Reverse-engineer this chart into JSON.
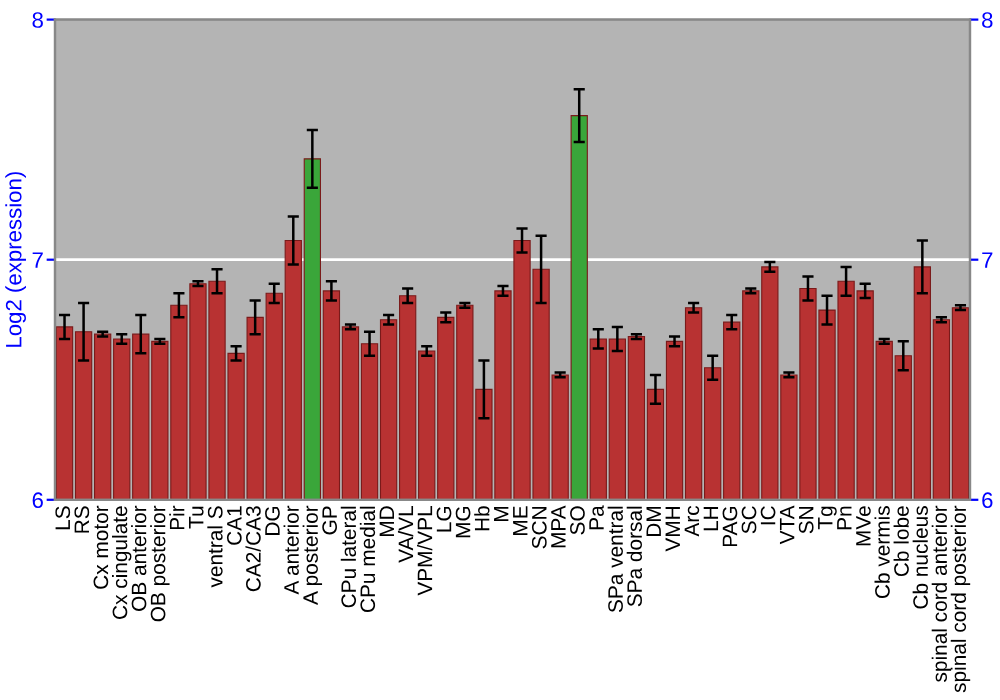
{
  "chart_data": {
    "type": "bar",
    "ylabel": "Log2 (expression)",
    "categories": [
      "LS",
      "RS",
      "Cx motor",
      "Cx cingulate",
      "OB anterior",
      "OB posterior",
      "Pir",
      "Tu",
      "ventral S",
      "CA1",
      "CA2/CA3",
      "DG",
      "A anterior",
      "A posterior",
      "GP",
      "CPu lateral",
      "CPu medial",
      "MD",
      "VA/VL",
      "VPM/VPL",
      "LG",
      "MG",
      "Hb",
      "M",
      "ME",
      "SCN",
      "MPA",
      "SO",
      "Pa",
      "SPa ventral",
      "SPa dorsal",
      "DM",
      "VMH",
      "Arc",
      "LH",
      "PAG",
      "SC",
      "IC",
      "VTA",
      "SN",
      "Tg",
      "Pn",
      "MVe",
      "Cb vermis",
      "Cb lobe",
      "Cb nucleus",
      "spinal cord anterior",
      "spinal cord posterior"
    ],
    "values": [
      6.72,
      6.7,
      6.69,
      6.67,
      6.69,
      6.66,
      6.81,
      6.9,
      6.91,
      6.61,
      6.76,
      6.86,
      7.08,
      7.42,
      6.87,
      6.72,
      6.65,
      6.75,
      6.85,
      6.62,
      6.76,
      6.81,
      6.46,
      6.87,
      7.08,
      6.96,
      6.52,
      7.6,
      6.67,
      6.67,
      6.68,
      6.46,
      6.66,
      6.8,
      6.55,
      6.74,
      6.87,
      6.97,
      6.52,
      6.88,
      6.79,
      6.91,
      6.87,
      6.66,
      6.6,
      6.97,
      6.75,
      6.8
    ],
    "errors": [
      0.05,
      0.12,
      0.01,
      0.02,
      0.08,
      0.01,
      0.05,
      0.01,
      0.05,
      0.03,
      0.07,
      0.04,
      0.1,
      0.12,
      0.04,
      0.01,
      0.05,
      0.02,
      0.03,
      0.02,
      0.02,
      0.01,
      0.12,
      0.02,
      0.05,
      0.14,
      0.01,
      0.11,
      0.04,
      0.05,
      0.01,
      0.06,
      0.02,
      0.02,
      0.05,
      0.03,
      0.01,
      0.02,
      0.01,
      0.05,
      0.06,
      0.06,
      0.03,
      0.01,
      0.06,
      0.11,
      0.01,
      0.01
    ],
    "colors": [
      "#b83232",
      "#b83232",
      "#b83232",
      "#b83232",
      "#b83232",
      "#b83232",
      "#b83232",
      "#b83232",
      "#b83232",
      "#b83232",
      "#b83232",
      "#b83232",
      "#b83232",
      "#3aa63a",
      "#b83232",
      "#b83232",
      "#b83232",
      "#b83232",
      "#b83232",
      "#b83232",
      "#b83232",
      "#b83232",
      "#b83232",
      "#b83232",
      "#b83232",
      "#b83232",
      "#b83232",
      "#3aa63a",
      "#b83232",
      "#b83232",
      "#b83232",
      "#b83232",
      "#b83232",
      "#b83232",
      "#b83232",
      "#b83232",
      "#b83232",
      "#b83232",
      "#b83232",
      "#b83232",
      "#b83232",
      "#b83232",
      "#b83232",
      "#b83232",
      "#b83232",
      "#b83232",
      "#b83232",
      "#b83232"
    ],
    "ylim": [
      6,
      8
    ],
    "yticks": [
      6,
      7,
      8
    ],
    "y2lim": [
      6,
      8
    ],
    "y2ticks": [
      6,
      7,
      8
    ],
    "grid": "y"
  }
}
